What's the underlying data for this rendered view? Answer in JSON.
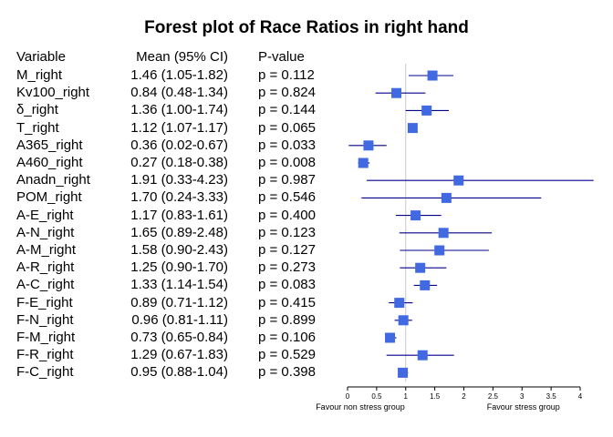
{
  "chart_data": {
    "type": "forest",
    "title": "Forest plot of Race Ratios in right hand",
    "columns": [
      "Variable",
      "Mean (95% CI)",
      "P-value"
    ],
    "rows": [
      {
        "variable": "M_right",
        "mean_ci": "1.46 (1.05-1.82)",
        "p": "p = 0.112",
        "mean": 1.46,
        "lower": 1.05,
        "upper": 1.82
      },
      {
        "variable": "Kv100_right",
        "mean_ci": "0.84 (0.48-1.34)",
        "p": "p = 0.824",
        "mean": 0.84,
        "lower": 0.48,
        "upper": 1.34
      },
      {
        "variable": "δ_right",
        "mean_ci": "1.36 (1.00-1.74)",
        "p": "p = 0.144",
        "mean": 1.36,
        "lower": 1.0,
        "upper": 1.74
      },
      {
        "variable": "T_right",
        "mean_ci": "1.12 (1.07-1.17)",
        "p": "p = 0.065",
        "mean": 1.12,
        "lower": 1.07,
        "upper": 1.17
      },
      {
        "variable": "A365_right",
        "mean_ci": "0.36 (0.02-0.67)",
        "p": "p = 0.033",
        "mean": 0.36,
        "lower": 0.02,
        "upper": 0.67
      },
      {
        "variable": "A460_right",
        "mean_ci": "0.27 (0.18-0.38)",
        "p": "p = 0.008",
        "mean": 0.27,
        "lower": 0.18,
        "upper": 0.38
      },
      {
        "variable": "Anadn_right",
        "mean_ci": "1.91 (0.33-4.23)",
        "p": "p = 0.987",
        "mean": 1.91,
        "lower": 0.33,
        "upper": 4.23
      },
      {
        "variable": "POM_right",
        "mean_ci": "1.70 (0.24-3.33)",
        "p": "p = 0.546",
        "mean": 1.7,
        "lower": 0.24,
        "upper": 3.33
      },
      {
        "variable": "A-E_right",
        "mean_ci": "1.17 (0.83-1.61)",
        "p": "p = 0.400",
        "mean": 1.17,
        "lower": 0.83,
        "upper": 1.61
      },
      {
        "variable": "A-N_right",
        "mean_ci": "1.65 (0.89-2.48)",
        "p": "p = 0.123",
        "mean": 1.65,
        "lower": 0.89,
        "upper": 2.48
      },
      {
        "variable": "A-M_right",
        "mean_ci": "1.58 (0.90-2.43)",
        "p": "p = 0.127",
        "mean": 1.58,
        "lower": 0.9,
        "upper": 2.43
      },
      {
        "variable": "A-R_right",
        "mean_ci": "1.25 (0.90-1.70)",
        "p": "p = 0.273",
        "mean": 1.25,
        "lower": 0.9,
        "upper": 1.7
      },
      {
        "variable": "A-C_right",
        "mean_ci": "1.33 (1.14-1.54)",
        "p": "p = 0.083",
        "mean": 1.33,
        "lower": 1.14,
        "upper": 1.54
      },
      {
        "variable": "F-E_right",
        "mean_ci": "0.89 (0.71-1.12)",
        "p": "p = 0.415",
        "mean": 0.89,
        "lower": 0.71,
        "upper": 1.12
      },
      {
        "variable": "F-N_right",
        "mean_ci": "0.96 (0.81-1.11)",
        "p": "p = 0.899",
        "mean": 0.96,
        "lower": 0.81,
        "upper": 1.11
      },
      {
        "variable": "F-M_right",
        "mean_ci": "0.73 (0.65-0.84)",
        "p": "p = 0.106",
        "mean": 0.73,
        "lower": 0.65,
        "upper": 0.84
      },
      {
        "variable": "F-R_right",
        "mean_ci": "1.29 (0.67-1.83)",
        "p": "p = 0.529",
        "mean": 1.29,
        "lower": 0.67,
        "upper": 1.83
      },
      {
        "variable": "F-C_right",
        "mean_ci": "0.95 (0.88-1.04)",
        "p": "p = 0.398",
        "mean": 0.95,
        "lower": 0.88,
        "upper": 1.04
      }
    ],
    "xlim": [
      0,
      4
    ],
    "x_ticks": [
      "0",
      "0.5",
      "1",
      "1.5",
      "2",
      "2.5",
      "3",
      "3.5",
      "4"
    ],
    "reference_line": 1,
    "xlabel_left": "Favour non stress group",
    "xlabel_right": "Favour stress group",
    "marker_color": "#4169e1",
    "line_color": "#00008b",
    "grid": false
  }
}
